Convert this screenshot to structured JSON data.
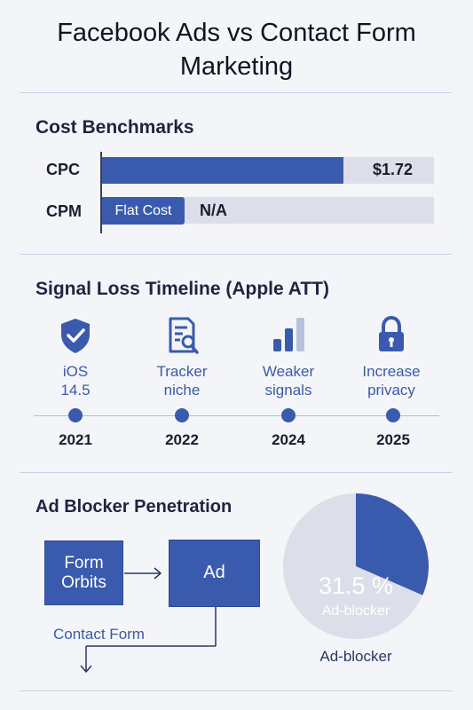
{
  "title_line1": "Facebook Ads vs Contact Form",
  "title_line2": "Marketing",
  "cost": {
    "heading": "Cost Benchmarks"
  },
  "timeline": {
    "heading": "Signal Loss Timeline (Apple ATT)",
    "items": [
      {
        "line1": "iOS",
        "line2": "14.5",
        "year": "2021",
        "icon": "shield-check-icon"
      },
      {
        "line1": "Tracker",
        "line2": "niche",
        "year": "2022",
        "icon": "document-search-icon"
      },
      {
        "line1": "Weaker",
        "line2": "signals",
        "year": "2024",
        "icon": "signal-bars-icon"
      },
      {
        "line1": "Increase",
        "line2": "privacy",
        "year": "2025",
        "icon": "padlock-icon"
      }
    ]
  },
  "adblock": {
    "heading": "Ad Blocker Penetration",
    "box_form_line1": "Form",
    "box_form_line2": "Orbits",
    "box_ad": "Ad",
    "flow_label": "Contact Form"
  },
  "colors": {
    "accent": "#3a5bad",
    "track": "#dcdfe9",
    "pie_rest": "#dcdfe9"
  },
  "chart_data": [
    {
      "type": "bar",
      "orientation": "horizontal",
      "title": "Cost Benchmarks",
      "categories": [
        "CPC",
        "CPM"
      ],
      "values": [
        1.72,
        null
      ],
      "value_labels": [
        "$1.72",
        "N/A"
      ],
      "fill_fraction": [
        0.727,
        0
      ],
      "chip_label": "Flat Cost"
    },
    {
      "type": "pie",
      "title": "Ad Blocker Penetration",
      "slices": [
        {
          "label": "Ad-blocker",
          "value": 31.5
        },
        {
          "label": "",
          "value": 68.5
        }
      ],
      "value_label": "31.5 %",
      "inner_label": "Ad-blocker",
      "caption": "Ad-blocker"
    }
  ]
}
